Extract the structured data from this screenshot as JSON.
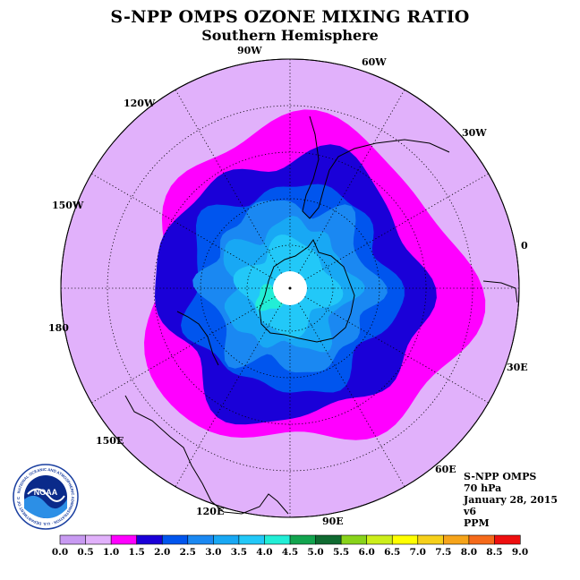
{
  "header": {
    "title": "S-NPP OMPS OZONE MIXING RATIO",
    "subtitle": "Southern Hemisphere"
  },
  "longitude_labels": [
    "90W",
    "60W",
    "30W",
    "0",
    "30E",
    "60E",
    "90E",
    "120E",
    "150E",
    "180",
    "150W",
    "120W"
  ],
  "info": {
    "instrument": "S-NPP OMPS",
    "level": "70 hPa",
    "date": "January 28, 2015",
    "version": "v6",
    "units": "PPM"
  },
  "logo": {
    "text": "NOAA",
    "ring_text": "NATIONAL OCEANIC AND ATMOSPHERIC ADMINISTRATION · U.S. DEPARTMENT OF COMMERCE"
  },
  "colorbar": {
    "ticks": [
      "0.0",
      "0.5",
      "1.0",
      "1.5",
      "2.0",
      "2.5",
      "3.0",
      "3.5",
      "4.0",
      "4.5",
      "5.0",
      "5.5",
      "6.0",
      "6.5",
      "7.0",
      "7.5",
      "8.0",
      "8.5",
      "9.0"
    ],
    "colors": [
      "#c89af2",
      "#e1b1fb",
      "#ff00ff",
      "#1a00d8",
      "#0055ee",
      "#1a88f2",
      "#18a8f4",
      "#22c8f8",
      "#22eed6",
      "#12a44e",
      "#0f6a30",
      "#88d31a",
      "#ccee1a",
      "#ffff00",
      "#f6d01a",
      "#f6a41a",
      "#f56a1a",
      "#ee0f0f",
      "#8a5a3a"
    ]
  },
  "map": {
    "polar_cap_value_missing_color": "#ffffff",
    "outside_color": "#e1b1fb",
    "contour_levels_shown": [
      "0.5-1.0",
      "1.0-1.5",
      "1.5-2.0",
      "2.0-2.5",
      "2.5-3.0",
      "3.0-3.5",
      "3.5-4.0"
    ]
  }
}
